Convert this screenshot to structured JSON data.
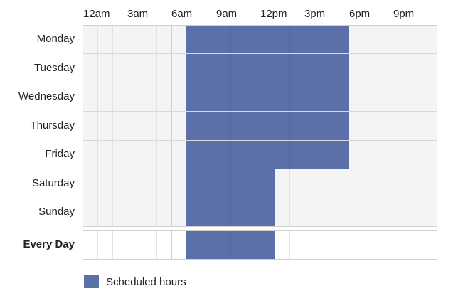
{
  "hours": [
    "12am",
    "3am",
    "6am",
    "9am",
    "12pm",
    "3pm",
    "6pm",
    "9pm"
  ],
  "days": [
    {
      "label": "Monday",
      "start_hour": 7,
      "end_hour": 18
    },
    {
      "label": "Tuesday",
      "start_hour": 7,
      "end_hour": 18
    },
    {
      "label": "Wednesday",
      "start_hour": 7,
      "end_hour": 18
    },
    {
      "label": "Thursday",
      "start_hour": 7,
      "end_hour": 18
    },
    {
      "label": "Friday",
      "start_hour": 7,
      "end_hour": 18
    },
    {
      "label": "Saturday",
      "start_hour": 7,
      "end_hour": 13
    },
    {
      "label": "Sunday",
      "start_hour": 7,
      "end_hour": 13
    }
  ],
  "every_day": {
    "label": "Every Day",
    "start_hour": 7,
    "end_hour": 13
  },
  "legend": {
    "label": "Scheduled hours"
  },
  "colors": {
    "scheduled": "#5b70a9",
    "empty_week": "#f4f4f4",
    "empty_everyday": "#ffffff"
  }
}
